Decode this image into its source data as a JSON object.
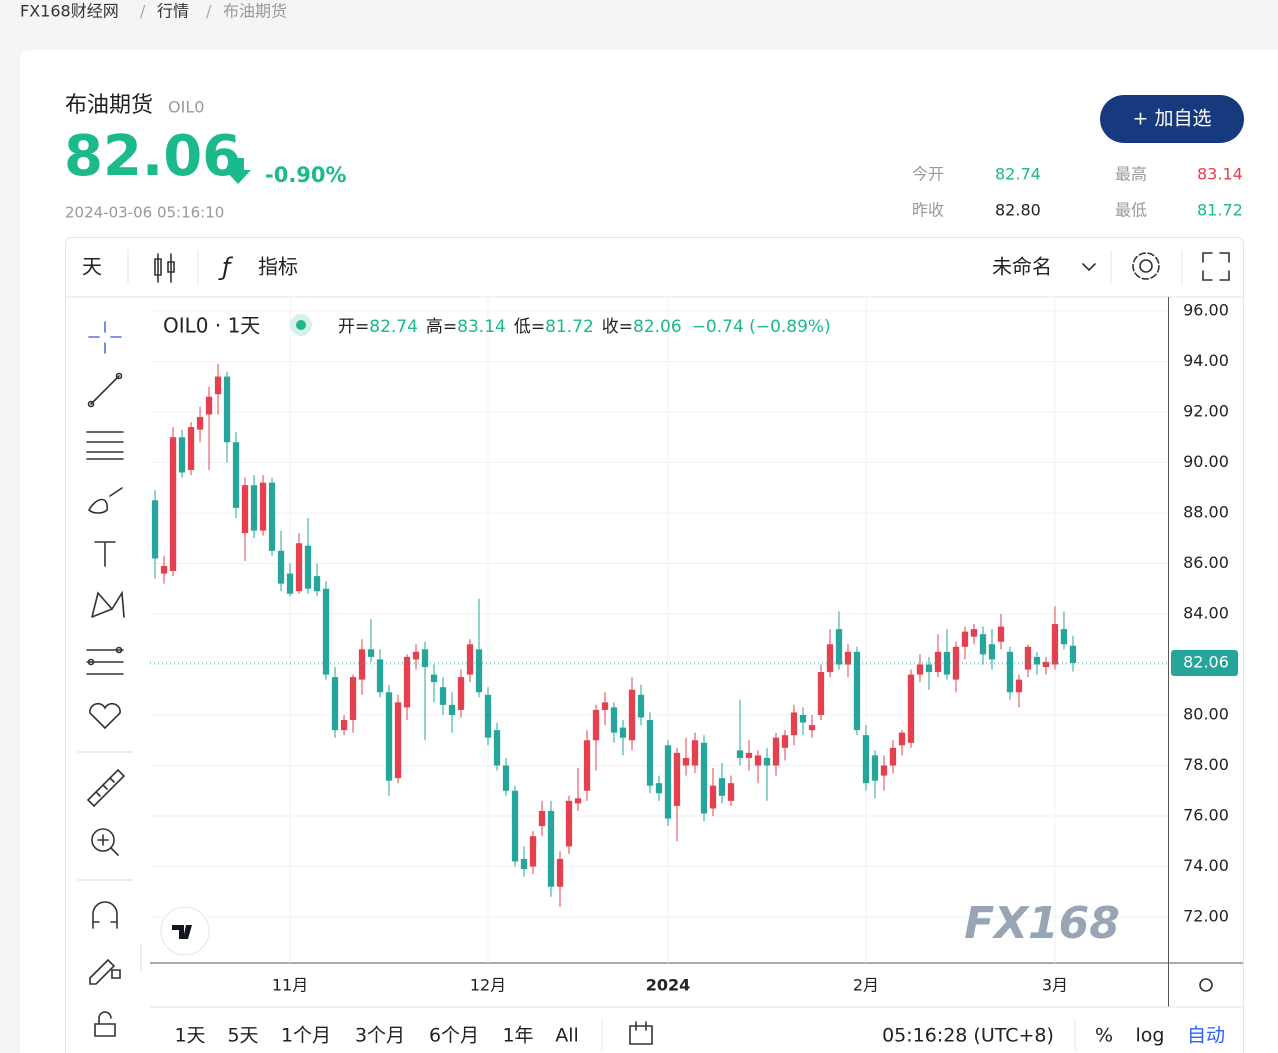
{
  "breadcrumb": [
    "FX168财经网",
    "行情",
    "布油期货"
  ],
  "header": {
    "name": "布油期货",
    "code": "OIL0",
    "price": "82.06",
    "change": "-0.90%",
    "time": "2024-03-06 05:16:10",
    "button": "+ 加自选"
  },
  "stats": [
    {
      "label": "今开",
      "value": "82.74"
    },
    {
      "label": "最高",
      "value": "83.14"
    },
    {
      "label": "昨收",
      "value": "82.80"
    },
    {
      "label": "最低",
      "value": "81.72"
    }
  ],
  "toolbar": {
    "interval": "天",
    "indicators": "指标",
    "layout": "未命名"
  },
  "legend": {
    "symbol": "OIL0 · 1天",
    "items": [
      {
        "label": "开=",
        "value": "82.74"
      },
      {
        "label": "高=",
        "value": "83.14"
      },
      {
        "label": "低=",
        "value": "81.72"
      },
      {
        "label": "收=",
        "value": "82.06"
      }
    ],
    "change": "−0.74 (−0.89%)"
  },
  "watermark": "FX168",
  "chart_data": {
    "type": "candlestick",
    "up_color": "#e5404f",
    "down_color": "#26a69a",
    "xlim": [
      -0.56,
      112.56
    ],
    "xticks": [
      {
        "value": 15,
        "label": "11月"
      },
      {
        "value": 37,
        "label": "12月"
      },
      {
        "value": 57,
        "label": "2024"
      },
      {
        "value": 79,
        "label": "2月"
      },
      {
        "value": 100,
        "label": "3月"
      }
    ],
    "ylim": [
      70.18,
      96.55
    ],
    "yticks": [
      {
        "value": 96,
        "label": "96.00"
      },
      {
        "value": 94,
        "label": "94.00"
      },
      {
        "value": 92,
        "label": "92.00"
      },
      {
        "value": 90,
        "label": "90.00"
      },
      {
        "value": 88,
        "label": "88.00"
      },
      {
        "value": 86,
        "label": "86.00"
      },
      {
        "value": 84,
        "label": "84.00"
      },
      {
        "value": 82,
        "label": "82.00"
      },
      {
        "value": 80,
        "label": "80.00"
      },
      {
        "value": 78,
        "label": "78.00"
      },
      {
        "value": 76,
        "label": "76.00"
      },
      {
        "value": 74,
        "label": "74.00"
      },
      {
        "value": 72,
        "label": "72.00"
      }
    ],
    "grid": true,
    "last_price": {
      "value": 82.06,
      "label": "82.06"
    },
    "open": [
      88.5,
      85.6,
      85.7,
      91.0,
      89.7,
      91.3,
      91.9,
      92.7,
      93.4,
      90.8,
      87.2,
      89.1,
      87.3,
      89.2,
      86.5,
      85.6,
      84.9,
      86.7,
      85.5,
      85.0,
      81.5,
      79.4,
      79.8,
      81.4,
      82.6,
      82.2,
      80.9,
      77.5,
      80.3,
      82.2,
      82.6,
      81.6,
      81.1,
      80.4,
      80.2,
      81.6,
      82.6,
      80.8,
      79.4,
      78.0,
      77.0,
      74.3,
      74.0,
      75.6,
      76.2,
      73.2,
      74.8,
      76.5,
      77.0,
      79.0,
      80.2,
      80.3,
      79.5,
      79.0,
      80.8,
      79.8,
      77.3,
      78.8,
      76.4,
      78.0,
      78.0,
      78.9,
      76.3,
      77.5,
      76.6,
      78.6,
      78.3,
      78.0,
      78.3,
      78.0,
      78.7,
      79.2,
      80.0,
      79.4,
      80.0,
      81.7,
      83.4,
      82.0,
      82.5,
      79.2,
      78.4,
      77.6,
      78.0,
      78.8,
      78.9,
      81.6,
      82.0,
      81.7,
      82.5,
      81.4,
      82.7,
      83.1,
      83.2,
      82.8,
      82.9,
      82.5,
      80.9,
      81.8,
      82.3,
      81.9,
      82.0,
      83.4,
      82.74
    ],
    "high": [
      88.9,
      86.3,
      91.4,
      91.3,
      91.6,
      92.2,
      93.0,
      93.9,
      93.6,
      91.2,
      89.4,
      89.5,
      89.5,
      89.4,
      87.3,
      86.0,
      87.2,
      87.8,
      86.0,
      85.3,
      81.9,
      80.0,
      81.6,
      83.0,
      83.8,
      82.6,
      81.2,
      80.8,
      82.4,
      82.8,
      82.9,
      82.0,
      81.5,
      80.9,
      81.8,
      83.0,
      84.6,
      81.1,
      79.7,
      78.3,
      77.2,
      74.8,
      75.4,
      76.6,
      76.6,
      74.6,
      76.8,
      77.9,
      79.4,
      80.4,
      80.9,
      80.5,
      79.8,
      81.5,
      81.2,
      80.1,
      77.6,
      79.0,
      78.7,
      79.1,
      79.3,
      79.2,
      77.9,
      78.1,
      77.6,
      80.6,
      79.0,
      78.6,
      78.7,
      79.3,
      79.4,
      80.4,
      80.3,
      80.0,
      82.0,
      83.4,
      84.1,
      82.8,
      82.7,
      79.6,
      78.6,
      78.4,
      79.0,
      79.4,
      81.8,
      82.4,
      82.3,
      83.2,
      83.4,
      82.9,
      83.5,
      83.6,
      83.5,
      83.4,
      84.0,
      82.7,
      81.6,
      82.8,
      82.5,
      82.3,
      84.3,
      84.1,
      83.14
    ],
    "low": [
      85.4,
      85.2,
      85.5,
      89.4,
      89.5,
      90.8,
      89.7,
      91.9,
      90.0,
      87.8,
      86.1,
      87.0,
      87.1,
      86.3,
      84.9,
      84.7,
      84.8,
      84.8,
      84.7,
      81.4,
      79.1,
      79.2,
      79.3,
      80.8,
      82.1,
      80.7,
      76.8,
      77.3,
      79.8,
      81.8,
      79.0,
      80.5,
      80.0,
      79.3,
      79.9,
      81.3,
      80.7,
      78.8,
      77.8,
      76.8,
      74.0,
      73.6,
      73.7,
      75.2,
      72.8,
      72.4,
      74.5,
      76.2,
      76.6,
      77.8,
      79.6,
      78.9,
      78.4,
      78.6,
      79.6,
      76.9,
      76.6,
      75.6,
      75.0,
      77.6,
      77.7,
      75.8,
      76.0,
      76.5,
      76.4,
      78.0,
      77.8,
      77.3,
      76.6,
      77.6,
      78.2,
      78.8,
      79.2,
      79.1,
      79.8,
      81.5,
      81.8,
      81.5,
      79.2,
      77.0,
      76.7,
      77.0,
      77.7,
      78.4,
      78.7,
      81.3,
      81.0,
      81.5,
      81.4,
      80.9,
      82.2,
      82.8,
      82.0,
      81.8,
      82.6,
      80.6,
      80.3,
      81.5,
      81.6,
      81.6,
      81.8,
      82.6,
      81.72
    ],
    "close": [
      86.2,
      85.9,
      91.0,
      89.6,
      91.4,
      91.8,
      92.6,
      93.4,
      90.8,
      88.2,
      89.1,
      87.3,
      89.2,
      86.5,
      85.2,
      84.8,
      86.8,
      85.0,
      84.9,
      81.6,
      79.4,
      79.8,
      81.5,
      82.6,
      82.3,
      80.9,
      77.4,
      80.5,
      82.3,
      82.5,
      81.9,
      81.3,
      80.4,
      80.0,
      81.5,
      82.8,
      80.9,
      79.1,
      78.0,
      77.0,
      74.2,
      73.9,
      75.2,
      76.2,
      73.2,
      74.3,
      76.6,
      76.7,
      79.0,
      80.2,
      80.5,
      79.3,
      79.1,
      81.0,
      79.9,
      77.2,
      76.9,
      75.9,
      78.5,
      78.3,
      79.0,
      76.1,
      77.2,
      76.8,
      77.3,
      78.3,
      78.5,
      78.4,
      78.0,
      79.1,
      79.2,
      80.1,
      79.7,
      79.6,
      81.7,
      82.8,
      82.0,
      82.5,
      79.4,
      77.3,
      77.4,
      78.0,
      78.7,
      79.3,
      81.6,
      82.0,
      81.7,
      82.5,
      81.6,
      82.7,
      83.3,
      83.4,
      82.4,
      82.2,
      83.5,
      80.9,
      81.4,
      82.7,
      82.0,
      82.1,
      83.6,
      82.8,
      82.06
    ]
  },
  "bottom": {
    "ranges": [
      "1天",
      "5天",
      "1个月",
      "3个月",
      "6个月",
      "1年",
      "All"
    ],
    "clock": "05:16:28 (UTC+8)",
    "options": [
      "%",
      "log",
      "自动"
    ]
  }
}
